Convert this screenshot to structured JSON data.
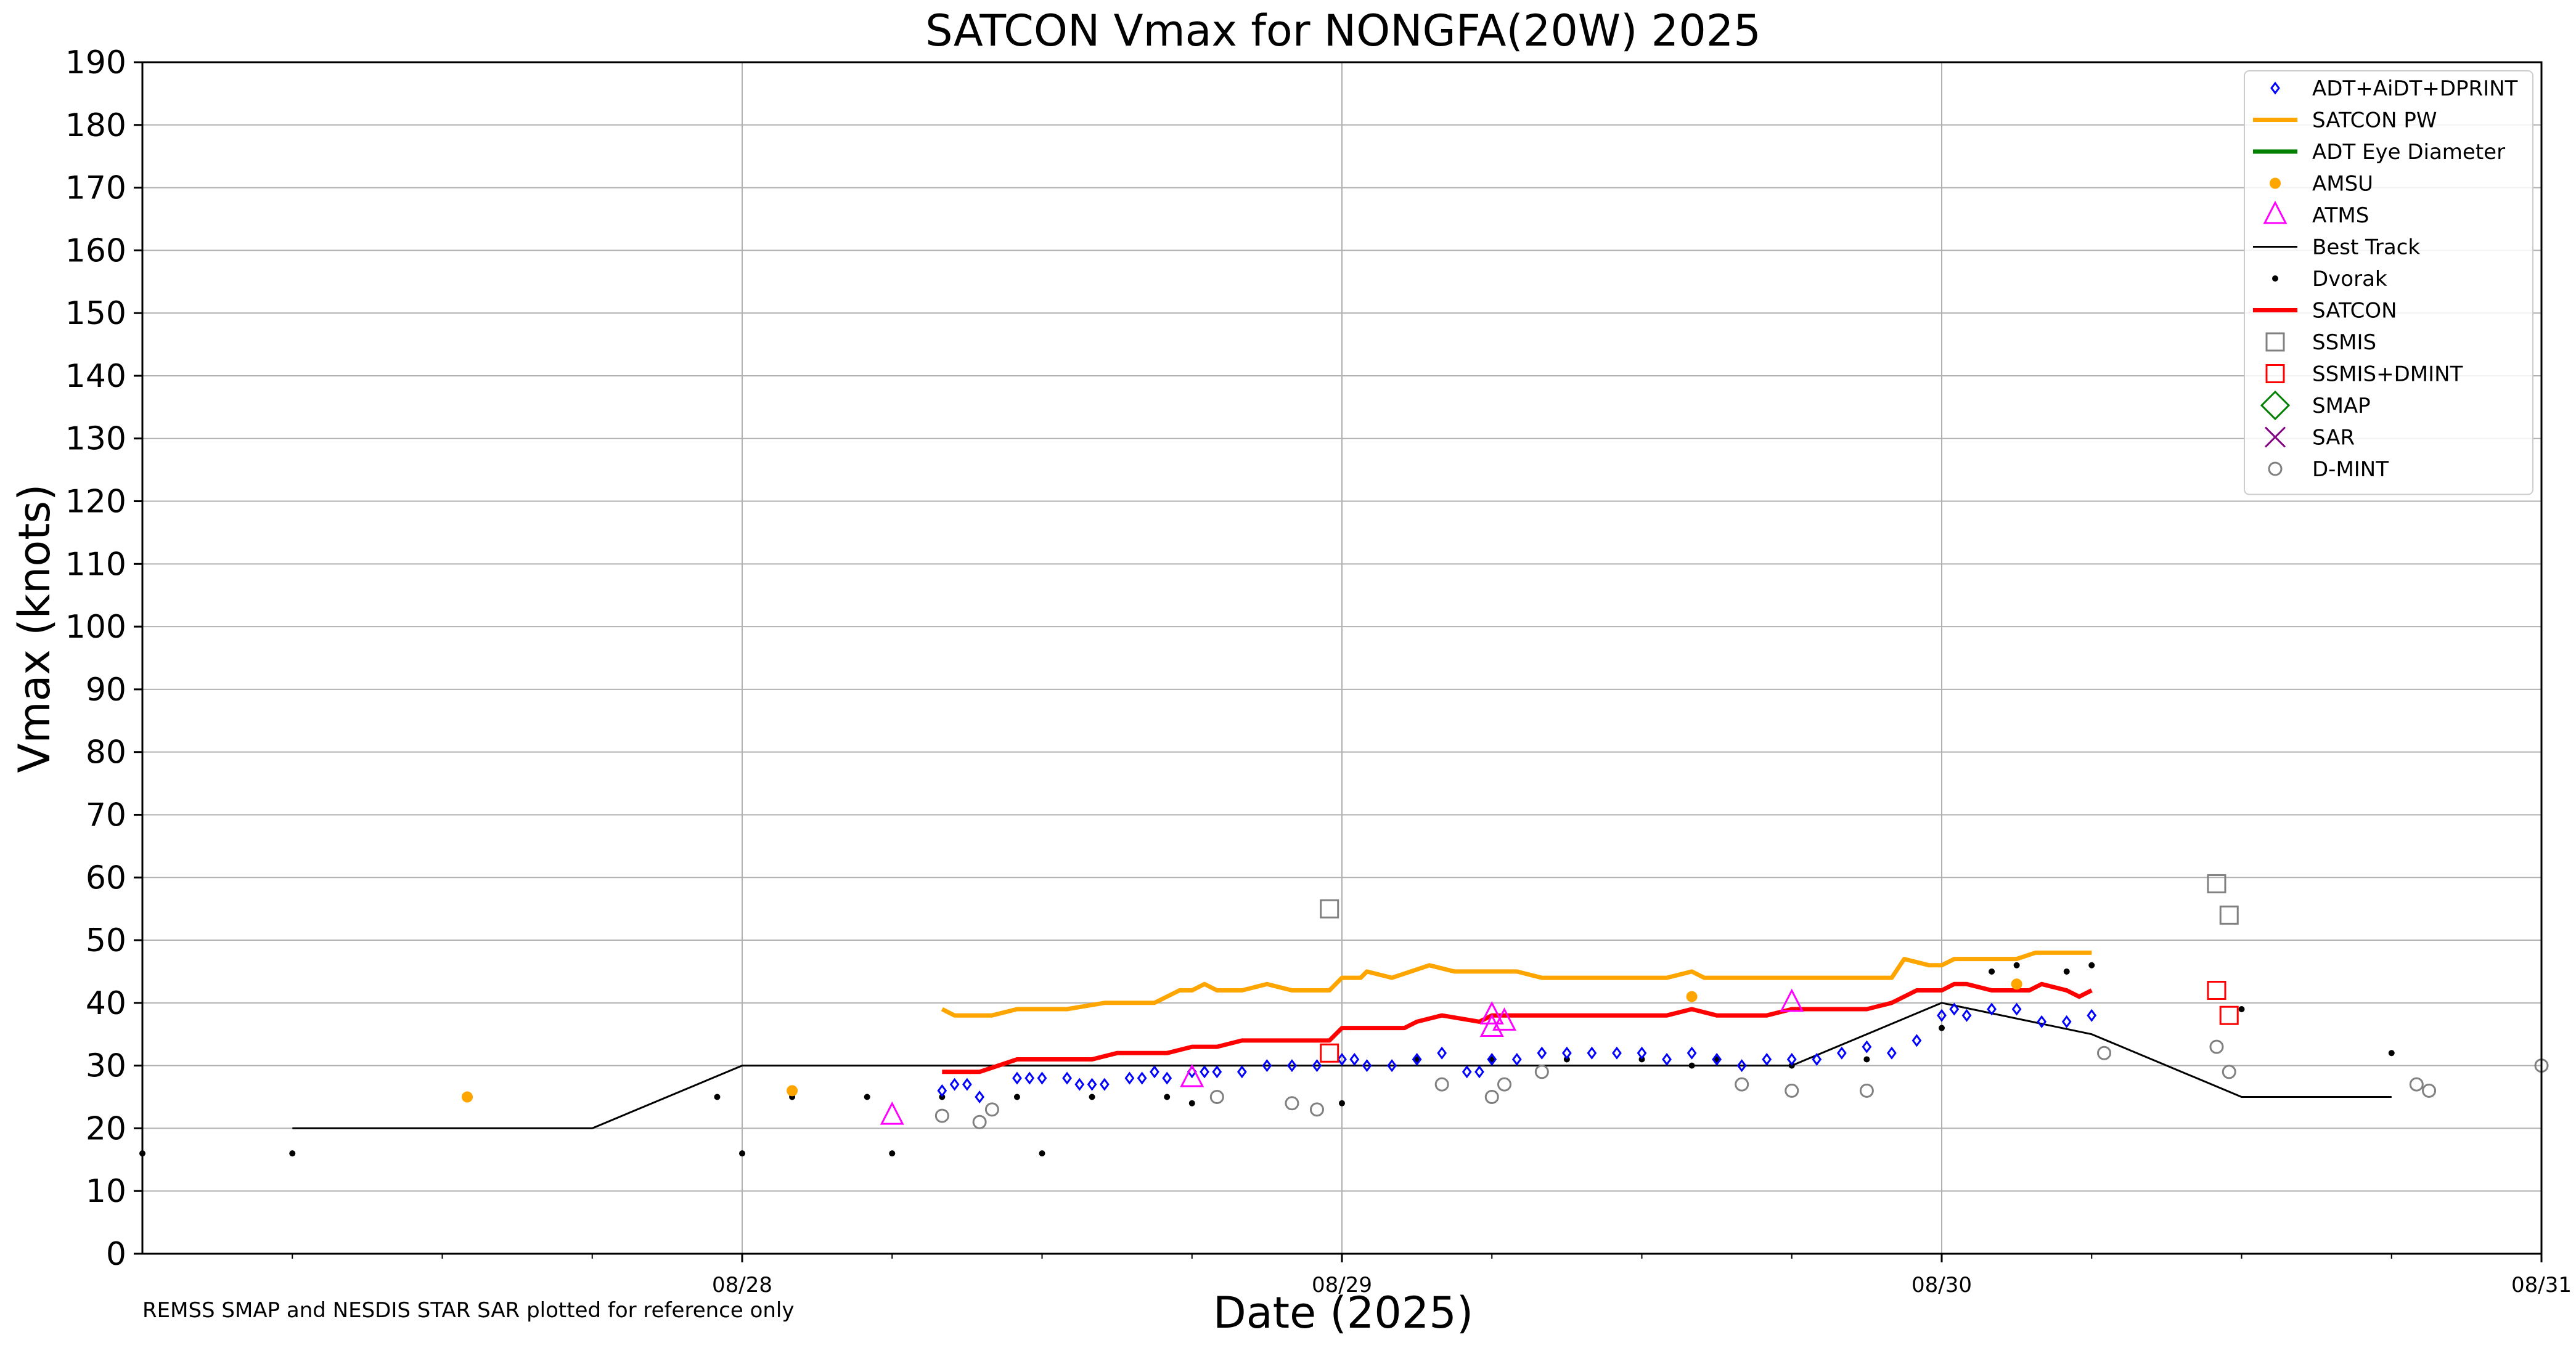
{
  "chart_data": {
    "type": "scatter",
    "title": "SATCON Vmax for NONGFA(20W) 2025",
    "xlabel": "Date (2025)",
    "ylabel": "Vmax (knots)",
    "footnote": "REMSS SMAP and NESDIS STAR SAR plotted for reference only",
    "xlim": [
      "2025-08-27T00:00",
      "2025-08-31T00:00"
    ],
    "ylim": [
      0,
      190
    ],
    "yticks": [
      0,
      10,
      20,
      30,
      40,
      50,
      60,
      70,
      80,
      90,
      100,
      110,
      120,
      130,
      140,
      150,
      160,
      170,
      180,
      190
    ],
    "xticks": [
      {
        "date": "2025-08-28T00:00",
        "label": "08/28"
      },
      {
        "date": "2025-08-29T00:00",
        "label": "08/29"
      },
      {
        "date": "2025-08-30T00:00",
        "label": "08/30"
      },
      {
        "date": "2025-08-31T00:00",
        "label": "08/31"
      }
    ],
    "grid": true,
    "legend_position": "top-right",
    "legend": [
      {
        "label": "ADT+AiDT+DPRINT",
        "symbol": "diamond-open",
        "color": "#0000ff"
      },
      {
        "label": "SATCON PW",
        "symbol": "line",
        "color": "#ffa500"
      },
      {
        "label": "ADT Eye Diameter",
        "symbol": "line",
        "color": "#008000"
      },
      {
        "label": "AMSU",
        "symbol": "dot",
        "color": "#ffa500"
      },
      {
        "label": "ATMS",
        "symbol": "triangle-open",
        "color": "#ff00ff"
      },
      {
        "label": "Best Track",
        "symbol": "thin-line",
        "color": "#000000"
      },
      {
        "label": "Dvorak",
        "symbol": "small-dot",
        "color": "#000000"
      },
      {
        "label": "SATCON",
        "symbol": "line",
        "color": "#ff0000"
      },
      {
        "label": "SSMIS",
        "symbol": "square-open",
        "color": "#808080"
      },
      {
        "label": "SSMIS+DMINT",
        "symbol": "square-open",
        "color": "#ff0000"
      },
      {
        "label": "SMAP",
        "symbol": "diamond-open-large",
        "color": "#008000"
      },
      {
        "label": "SAR",
        "symbol": "x",
        "color": "#800080"
      },
      {
        "label": "D-MINT",
        "symbol": "circle-open",
        "color": "#808080"
      }
    ],
    "series": [
      {
        "name": "Best Track",
        "type": "line",
        "color": "#000000",
        "points": [
          [
            "2025-08-27T06:00",
            20
          ],
          [
            "2025-08-27T18:00",
            20
          ],
          [
            "2025-08-28T00:00",
            30
          ],
          [
            "2025-08-29T18:00",
            30
          ],
          [
            "2025-08-30T00:00",
            40
          ],
          [
            "2025-08-30T06:00",
            35
          ],
          [
            "2025-08-30T12:00",
            25
          ],
          [
            "2025-08-30T18:00",
            25
          ]
        ]
      },
      {
        "name": "SATCON PW",
        "type": "line",
        "color": "#ffa500",
        "points": [
          [
            "2025-08-28T08:00",
            39
          ],
          [
            "2025-08-28T08:30",
            38
          ],
          [
            "2025-08-28T10:00",
            38
          ],
          [
            "2025-08-28T11:00",
            39
          ],
          [
            "2025-08-28T13:00",
            39
          ],
          [
            "2025-08-28T14:30",
            40
          ],
          [
            "2025-08-28T16:30",
            40
          ],
          [
            "2025-08-28T17:30",
            42
          ],
          [
            "2025-08-28T18:00",
            42
          ],
          [
            "2025-08-28T18:30",
            43
          ],
          [
            "2025-08-28T19:00",
            42
          ],
          [
            "2025-08-28T20:00",
            42
          ],
          [
            "2025-08-28T21:00",
            43
          ],
          [
            "2025-08-28T22:00",
            42
          ],
          [
            "2025-08-28T23:30",
            42
          ],
          [
            "2025-08-29T00:00",
            44
          ],
          [
            "2025-08-29T00:45",
            44
          ],
          [
            "2025-08-29T01:00",
            45
          ],
          [
            "2025-08-29T02:00",
            44
          ],
          [
            "2025-08-29T03:30",
            46
          ],
          [
            "2025-08-29T04:30",
            45
          ],
          [
            "2025-08-29T07:00",
            45
          ],
          [
            "2025-08-29T08:00",
            44
          ],
          [
            "2025-08-29T13:00",
            44
          ],
          [
            "2025-08-29T14:00",
            45
          ],
          [
            "2025-08-29T14:30",
            44
          ],
          [
            "2025-08-29T22:00",
            44
          ],
          [
            "2025-08-29T22:30",
            47
          ],
          [
            "2025-08-29T23:30",
            46
          ],
          [
            "2025-08-30T00:00",
            46
          ],
          [
            "2025-08-30T00:30",
            47
          ],
          [
            "2025-08-30T03:00",
            47
          ],
          [
            "2025-08-30T03:45",
            48
          ],
          [
            "2025-08-30T06:00",
            48
          ]
        ]
      },
      {
        "name": "SATCON",
        "type": "line",
        "color": "#ff0000",
        "points": [
          [
            "2025-08-28T08:00",
            29
          ],
          [
            "2025-08-28T09:30",
            29
          ],
          [
            "2025-08-28T11:00",
            31
          ],
          [
            "2025-08-28T14:00",
            31
          ],
          [
            "2025-08-28T15:00",
            32
          ],
          [
            "2025-08-28T17:00",
            32
          ],
          [
            "2025-08-28T18:00",
            33
          ],
          [
            "2025-08-28T19:00",
            33
          ],
          [
            "2025-08-28T20:00",
            34
          ],
          [
            "2025-08-28T23:30",
            34
          ],
          [
            "2025-08-29T00:00",
            36
          ],
          [
            "2025-08-29T01:30",
            36
          ],
          [
            "2025-08-29T02:30",
            36
          ],
          [
            "2025-08-29T03:00",
            37
          ],
          [
            "2025-08-29T04:00",
            38
          ],
          [
            "2025-08-29T05:30",
            37
          ],
          [
            "2025-08-29T06:00",
            38
          ],
          [
            "2025-08-29T13:00",
            38
          ],
          [
            "2025-08-29T14:00",
            39
          ],
          [
            "2025-08-29T15:00",
            38
          ],
          [
            "2025-08-29T17:00",
            38
          ],
          [
            "2025-08-29T18:00",
            39
          ],
          [
            "2025-08-29T21:00",
            39
          ],
          [
            "2025-08-29T22:00",
            40
          ],
          [
            "2025-08-29T23:00",
            42
          ],
          [
            "2025-08-30T00:00",
            42
          ],
          [
            "2025-08-30T00:30",
            43
          ],
          [
            "2025-08-30T01:00",
            43
          ],
          [
            "2025-08-30T02:00",
            42
          ],
          [
            "2025-08-30T03:30",
            42
          ],
          [
            "2025-08-30T04:00",
            43
          ],
          [
            "2025-08-30T05:00",
            42
          ],
          [
            "2025-08-30T05:30",
            41
          ],
          [
            "2025-08-30T06:00",
            42
          ]
        ]
      },
      {
        "name": "ADT+AiDT+DPRINT",
        "type": "scatter",
        "color": "#0000ff",
        "points": [
          [
            "2025-08-28T08:00",
            26
          ],
          [
            "2025-08-28T08:30",
            27
          ],
          [
            "2025-08-28T09:00",
            27
          ],
          [
            "2025-08-28T09:30",
            25
          ],
          [
            "2025-08-28T11:00",
            28
          ],
          [
            "2025-08-28T11:30",
            28
          ],
          [
            "2025-08-28T12:00",
            28
          ],
          [
            "2025-08-28T13:00",
            28
          ],
          [
            "2025-08-28T13:30",
            27
          ],
          [
            "2025-08-28T14:00",
            27
          ],
          [
            "2025-08-28T14:30",
            27
          ],
          [
            "2025-08-28T15:30",
            28
          ],
          [
            "2025-08-28T16:00",
            28
          ],
          [
            "2025-08-28T16:30",
            29
          ],
          [
            "2025-08-28T17:00",
            28
          ],
          [
            "2025-08-28T18:00",
            29
          ],
          [
            "2025-08-28T18:30",
            29
          ],
          [
            "2025-08-28T19:00",
            29
          ],
          [
            "2025-08-28T20:00",
            29
          ],
          [
            "2025-08-28T21:00",
            30
          ],
          [
            "2025-08-28T22:00",
            30
          ],
          [
            "2025-08-28T23:00",
            30
          ],
          [
            "2025-08-29T00:00",
            31
          ],
          [
            "2025-08-29T00:30",
            31
          ],
          [
            "2025-08-29T01:00",
            30
          ],
          [
            "2025-08-29T02:00",
            30
          ],
          [
            "2025-08-29T03:00",
            31
          ],
          [
            "2025-08-29T04:00",
            32
          ],
          [
            "2025-08-29T05:00",
            29
          ],
          [
            "2025-08-29T05:30",
            29
          ],
          [
            "2025-08-29T06:00",
            31
          ],
          [
            "2025-08-29T07:00",
            31
          ],
          [
            "2025-08-29T08:00",
            32
          ],
          [
            "2025-08-29T09:00",
            32
          ],
          [
            "2025-08-29T10:00",
            32
          ],
          [
            "2025-08-29T11:00",
            32
          ],
          [
            "2025-08-29T12:00",
            32
          ],
          [
            "2025-08-29T13:00",
            31
          ],
          [
            "2025-08-29T14:00",
            32
          ],
          [
            "2025-08-29T15:00",
            31
          ],
          [
            "2025-08-29T16:00",
            30
          ],
          [
            "2025-08-29T17:00",
            31
          ],
          [
            "2025-08-29T18:00",
            31
          ],
          [
            "2025-08-29T19:00",
            31
          ],
          [
            "2025-08-29T20:00",
            32
          ],
          [
            "2025-08-29T21:00",
            33
          ],
          [
            "2025-08-29T22:00",
            32
          ],
          [
            "2025-08-29T23:00",
            34
          ],
          [
            "2025-08-30T00:00",
            38
          ],
          [
            "2025-08-30T00:30",
            39
          ],
          [
            "2025-08-30T01:00",
            38
          ],
          [
            "2025-08-30T02:00",
            39
          ],
          [
            "2025-08-30T03:00",
            39
          ],
          [
            "2025-08-30T04:00",
            37
          ],
          [
            "2025-08-30T05:00",
            37
          ],
          [
            "2025-08-30T06:00",
            38
          ]
        ]
      },
      {
        "name": "Dvorak",
        "type": "scatter",
        "color": "#000000",
        "points": [
          [
            "2025-08-27T00:00",
            16
          ],
          [
            "2025-08-27T06:00",
            16
          ],
          [
            "2025-08-27T23:00",
            25
          ],
          [
            "2025-08-28T00:00",
            16
          ],
          [
            "2025-08-28T02:00",
            25
          ],
          [
            "2025-08-28T05:00",
            25
          ],
          [
            "2025-08-28T06:00",
            16
          ],
          [
            "2025-08-28T08:00",
            25
          ],
          [
            "2025-08-28T11:00",
            25
          ],
          [
            "2025-08-28T12:00",
            16
          ],
          [
            "2025-08-28T14:00",
            25
          ],
          [
            "2025-08-28T17:00",
            25
          ],
          [
            "2025-08-28T18:00",
            24
          ],
          [
            "2025-08-29T00:00",
            24
          ],
          [
            "2025-08-29T03:00",
            31
          ],
          [
            "2025-08-29T06:00",
            31
          ],
          [
            "2025-08-29T09:00",
            31
          ],
          [
            "2025-08-29T12:00",
            31
          ],
          [
            "2025-08-29T14:00",
            30
          ],
          [
            "2025-08-29T15:00",
            31
          ],
          [
            "2025-08-29T18:00",
            30
          ],
          [
            "2025-08-29T21:00",
            31
          ],
          [
            "2025-08-30T00:00",
            36
          ],
          [
            "2025-08-30T02:00",
            45
          ],
          [
            "2025-08-30T03:00",
            46
          ],
          [
            "2025-08-30T05:00",
            45
          ],
          [
            "2025-08-30T06:00",
            46
          ],
          [
            "2025-08-30T12:00",
            39
          ],
          [
            "2025-08-30T18:00",
            32
          ]
        ]
      },
      {
        "name": "AMSU",
        "type": "scatter",
        "color": "#ffa500",
        "points": [
          [
            "2025-08-27T13:00",
            25
          ],
          [
            "2025-08-28T02:00",
            26
          ],
          [
            "2025-08-29T14:00",
            41
          ],
          [
            "2025-08-30T03:00",
            43
          ]
        ]
      },
      {
        "name": "ATMS",
        "type": "scatter",
        "color": "#ff00ff",
        "points": [
          [
            "2025-08-28T06:00",
            22
          ],
          [
            "2025-08-28T18:00",
            28
          ],
          [
            "2025-08-29T06:00",
            38
          ],
          [
            "2025-08-29T06:00",
            36
          ],
          [
            "2025-08-29T06:30",
            37
          ],
          [
            "2025-08-29T18:00",
            40
          ]
        ]
      },
      {
        "name": "SSMIS",
        "type": "scatter",
        "color": "#808080",
        "points": [
          [
            "2025-08-28T23:30",
            55
          ],
          [
            "2025-08-30T11:00",
            59
          ],
          [
            "2025-08-30T11:30",
            54
          ]
        ]
      },
      {
        "name": "SSMIS+DMINT",
        "type": "scatter",
        "color": "#ff0000",
        "points": [
          [
            "2025-08-28T23:30",
            32
          ],
          [
            "2025-08-30T11:00",
            42
          ],
          [
            "2025-08-30T11:30",
            38
          ]
        ]
      },
      {
        "name": "D-MINT",
        "type": "scatter",
        "color": "#808080",
        "points": [
          [
            "2025-08-28T08:00",
            22
          ],
          [
            "2025-08-28T09:30",
            21
          ],
          [
            "2025-08-28T10:00",
            23
          ],
          [
            "2025-08-28T19:00",
            25
          ],
          [
            "2025-08-28T22:00",
            24
          ],
          [
            "2025-08-28T23:00",
            23
          ],
          [
            "2025-08-29T04:00",
            27
          ],
          [
            "2025-08-29T06:00",
            25
          ],
          [
            "2025-08-29T06:30",
            27
          ],
          [
            "2025-08-29T08:00",
            29
          ],
          [
            "2025-08-29T16:00",
            27
          ],
          [
            "2025-08-29T18:00",
            26
          ],
          [
            "2025-08-29T21:00",
            26
          ],
          [
            "2025-08-30T06:30",
            32
          ],
          [
            "2025-08-30T11:00",
            33
          ],
          [
            "2025-08-30T11:30",
            29
          ],
          [
            "2025-08-30T19:00",
            27
          ],
          [
            "2025-08-30T19:30",
            26
          ],
          [
            "2025-08-31T00:00",
            30
          ]
        ]
      }
    ]
  }
}
